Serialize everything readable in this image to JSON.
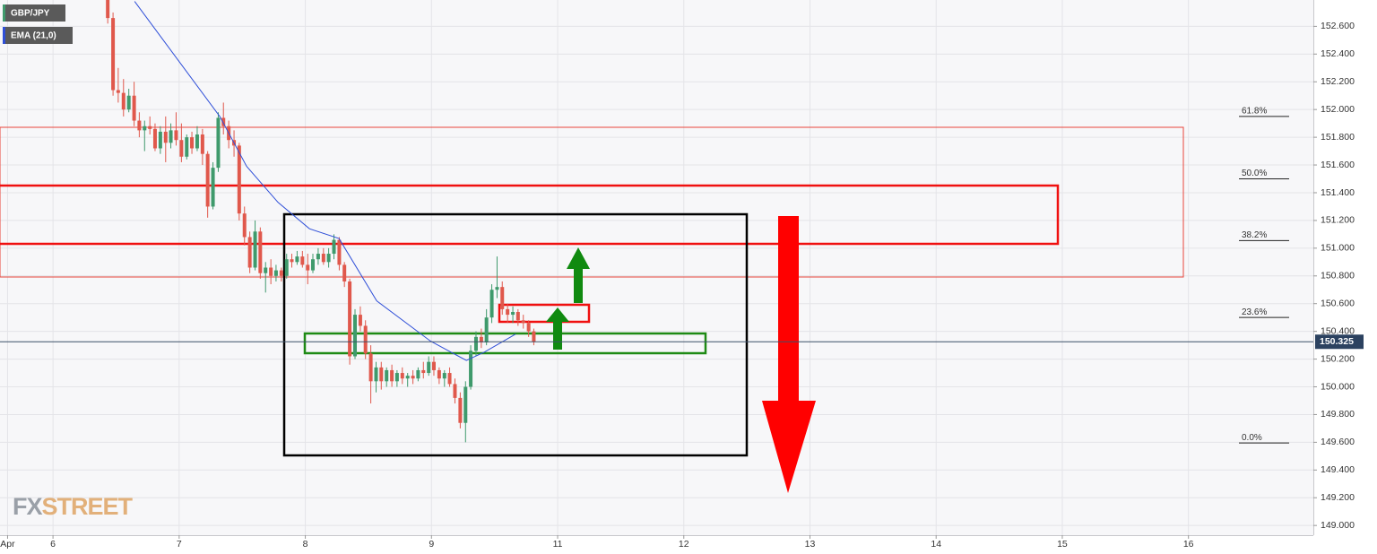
{
  "chart_data": {
    "type": "candlestick",
    "xlim": [
      5.58,
      15.99
    ],
    "ylim": [
      148.93,
      152.79
    ],
    "xticks": [
      {
        "value": 5.64,
        "label": "Apr"
      },
      6,
      7,
      8,
      9,
      {
        "value": 10,
        "label": "11"
      },
      {
        "value": 11,
        "label": "12"
      },
      {
        "value": 12,
        "label": "13"
      },
      {
        "value": 13,
        "label": "14"
      },
      {
        "value": 14,
        "label": "15"
      },
      {
        "value": 15,
        "label": "16"
      }
    ],
    "yticks": [
      {
        "value": 149,
        "label": "149.000"
      },
      {
        "value": 149.2,
        "label": "149.200"
      },
      {
        "value": 149.4,
        "label": "149.400"
      },
      {
        "value": 149.6,
        "label": "149.600"
      },
      {
        "value": 149.8,
        "label": "149.800"
      },
      {
        "value": 150,
        "label": "150.000"
      },
      {
        "value": 150.2,
        "label": "150.200"
      },
      {
        "value": 150.4,
        "label": "150.400"
      },
      {
        "value": 150.6,
        "label": "150.600"
      },
      {
        "value": 150.8,
        "label": "150.800"
      },
      {
        "value": 151,
        "label": "151.000"
      },
      {
        "value": 151.2,
        "label": "151.200"
      },
      {
        "value": 151.4,
        "label": "151.400"
      },
      {
        "value": 151.6,
        "label": "151.600"
      },
      {
        "value": 151.8,
        "label": "151.800"
      },
      {
        "value": 152,
        "label": "152.000"
      },
      {
        "value": 152.2,
        "label": "152.200"
      },
      {
        "value": 152.4,
        "label": "152.400"
      },
      {
        "value": 152.6,
        "label": "152.600"
      }
    ],
    "grid": true,
    "last_price": 150.325,
    "fib_levels": [
      {
        "label": "61.8%",
        "value": 151.95
      },
      {
        "label": "50.0%",
        "value": 151.5
      },
      {
        "label": "38.2%",
        "value": 151.055
      },
      {
        "label": "23.6%",
        "value": 150.5
      },
      {
        "label": "0.0%",
        "value": 149.595
      }
    ],
    "watermark_prefix": "FX",
    "watermark": "STREET",
    "series": [
      {
        "name": "GBP/JPY",
        "up_color": "#3f9a6c",
        "down_color": "#e0584c",
        "x": [
          6.434,
          6.476,
          6.517,
          6.559,
          6.601,
          6.643,
          6.684,
          6.726,
          6.768,
          6.809,
          6.851,
          6.893,
          6.934,
          6.976,
          7.018,
          7.06,
          7.101,
          7.143,
          7.185,
          7.226,
          7.268,
          7.31,
          7.351,
          7.393,
          7.435,
          7.476,
          7.518,
          7.56,
          7.602,
          7.643,
          7.685,
          7.727,
          7.768,
          7.81,
          7.852,
          7.893,
          7.935,
          7.977,
          8.019,
          8.06,
          8.102,
          8.144,
          8.185,
          8.227,
          8.269,
          8.31,
          8.352,
          8.394,
          8.436,
          8.477,
          8.519,
          8.561,
          8.602,
          8.644,
          8.686,
          8.727,
          8.769,
          8.811,
          8.853,
          8.894,
          8.936,
          8.978,
          9.019,
          9.061,
          9.103,
          9.144,
          9.186,
          9.228,
          9.27,
          9.311,
          9.353,
          9.395,
          9.436,
          9.478,
          9.52,
          9.561,
          9.603,
          9.645,
          9.686,
          9.728,
          9.77,
          9.811
        ],
        "open": [
          152.8,
          152.66,
          152.14,
          152.12,
          152,
          152.1,
          151.92,
          151.85,
          151.88,
          151.86,
          151.72,
          151.84,
          151.76,
          151.85,
          151.78,
          151.66,
          151.8,
          151.72,
          151.82,
          151.68,
          151.3,
          151.58,
          151.94,
          151.88,
          151.78,
          151.74,
          151.25,
          151.08,
          150.86,
          151.12,
          150.82,
          150.86,
          150.8,
          150.84,
          150.8,
          150.92,
          150.9,
          150.94,
          150.88,
          150.84,
          150.92,
          150.96,
          150.9,
          150.96,
          151.06,
          150.88,
          150.76,
          150.22,
          150.52,
          150.44,
          150.24,
          150.04,
          150.14,
          150.04,
          150.12,
          150.04,
          150.1,
          150.06,
          150.08,
          150.06,
          150.12,
          150.1,
          150.18,
          150.12,
          150.06,
          150.1,
          150.02,
          149.92,
          149.74,
          150,
          150.26,
          150.36,
          150.32,
          150.5,
          150.7,
          150.72,
          150.56,
          150.52,
          150.54,
          150.48,
          150.46,
          150.4
        ],
        "high": [
          152.82,
          152.7,
          152.3,
          152.22,
          152.15,
          152.2,
          151.98,
          151.92,
          151.95,
          151.9,
          151.88,
          151.95,
          151.9,
          151.98,
          151.9,
          151.82,
          151.84,
          151.88,
          151.86,
          151.7,
          151.62,
          151.98,
          152.05,
          151.92,
          151.85,
          151.76,
          151.3,
          151.12,
          151.2,
          151.15,
          150.9,
          150.92,
          150.88,
          150.86,
          150.96,
          150.96,
          150.98,
          150.98,
          150.96,
          150.96,
          151,
          151,
          151,
          151.1,
          151.08,
          150.9,
          150.78,
          150.56,
          150.58,
          150.48,
          150.3,
          150.18,
          150.18,
          150.14,
          150.16,
          150.12,
          150.14,
          150.1,
          150.12,
          150.14,
          150.18,
          150.22,
          150.22,
          150.14,
          150.12,
          150.14,
          150.06,
          149.96,
          150.04,
          150.3,
          150.4,
          150.42,
          150.56,
          150.74,
          150.94,
          150.76,
          150.6,
          150.58,
          150.56,
          150.52,
          150.48,
          150.42
        ],
        "low": [
          152.62,
          152.1,
          152.05,
          151.95,
          151.98,
          151.88,
          151.8,
          151.7,
          151.82,
          151.7,
          151.68,
          151.62,
          151.72,
          151.74,
          151.62,
          151.64,
          151.68,
          151.7,
          151.6,
          151.22,
          151.28,
          151.55,
          151.82,
          151.72,
          151.66,
          151.2,
          151.02,
          150.82,
          150.84,
          150.78,
          150.68,
          150.74,
          150.76,
          150.76,
          150.78,
          150.86,
          150.88,
          150.86,
          150.74,
          150.82,
          150.88,
          150.88,
          150.86,
          150.92,
          150.84,
          150.72,
          150.16,
          150.2,
          150.4,
          150.2,
          149.88,
          149.96,
          149.98,
          150,
          150,
          150,
          150.02,
          150,
          150.02,
          150.04,
          150.06,
          150.08,
          150.08,
          150.02,
          150,
          150,
          149.88,
          149.7,
          149.6,
          149.98,
          150.22,
          150.28,
          150.3,
          150.46,
          150.64,
          150.52,
          150.46,
          150.46,
          150.44,
          150.42,
          150.36,
          150.3
        ],
        "close": [
          152.66,
          152.14,
          152.12,
          152,
          152.1,
          151.92,
          151.85,
          151.88,
          151.86,
          151.72,
          151.84,
          151.76,
          151.85,
          151.78,
          151.66,
          151.8,
          151.72,
          151.82,
          151.68,
          151.3,
          151.58,
          151.94,
          151.88,
          151.78,
          151.74,
          151.25,
          151.08,
          150.86,
          151.12,
          150.82,
          150.86,
          150.8,
          150.84,
          150.8,
          150.92,
          150.9,
          150.94,
          150.88,
          150.84,
          150.92,
          150.96,
          150.9,
          150.96,
          151.06,
          150.88,
          150.76,
          150.22,
          150.52,
          150.44,
          150.24,
          150.04,
          150.14,
          150.04,
          150.12,
          150.04,
          150.1,
          150.06,
          150.08,
          150.06,
          150.12,
          150.1,
          150.18,
          150.12,
          150.06,
          150.1,
          150.02,
          149.92,
          149.74,
          150,
          150.26,
          150.36,
          150.32,
          150.5,
          150.7,
          150.72,
          150.56,
          150.52,
          150.54,
          150.48,
          150.46,
          150.4,
          150.325
        ]
      },
      {
        "name": "EMA (21,0)",
        "color": "#2f4fd8",
        "x": [
          6.647,
          7.322,
          7.535,
          7.784,
          8.033,
          8.267,
          8.566,
          8.992,
          9.277,
          9.419,
          9.667
        ],
        "values": [
          152.78,
          151.95,
          151.59,
          151.33,
          151.14,
          151.07,
          150.62,
          150.33,
          150.19,
          150.25,
          150.38
        ]
      }
    ]
  }
}
